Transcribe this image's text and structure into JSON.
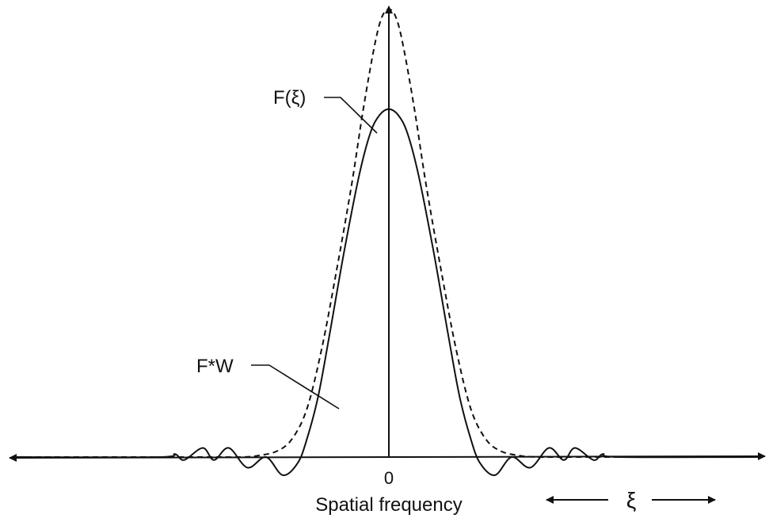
{
  "chart_data": {
    "type": "line",
    "title": "",
    "xlabel": "Spatial frequency",
    "ylabel": "",
    "origin_tick": "0",
    "axis_variable": "ξ",
    "x_range": [
      -1,
      1
    ],
    "y_range": [
      -0.08,
      1.5
    ],
    "grid": false,
    "legend": "none",
    "series": [
      {
        "name": "F(ξ)",
        "style": "dashed",
        "points": [
          [
            -1.0,
            0.0
          ],
          [
            -0.5,
            0.0
          ],
          [
            -0.4,
            0.0
          ],
          [
            -0.35,
            0.005
          ],
          [
            -0.3,
            0.02
          ],
          [
            -0.26,
            0.06
          ],
          [
            -0.22,
            0.16
          ],
          [
            -0.18,
            0.36
          ],
          [
            -0.14,
            0.62
          ],
          [
            -0.1,
            0.9
          ],
          [
            -0.07,
            1.14
          ],
          [
            -0.04,
            1.35
          ],
          [
            -0.02,
            1.45
          ],
          [
            0.0,
            1.48
          ],
          [
            0.02,
            1.45
          ],
          [
            0.04,
            1.35
          ],
          [
            0.07,
            1.14
          ],
          [
            0.1,
            0.9
          ],
          [
            0.14,
            0.62
          ],
          [
            0.18,
            0.36
          ],
          [
            0.22,
            0.16
          ],
          [
            0.26,
            0.06
          ],
          [
            0.3,
            0.02
          ],
          [
            0.35,
            0.005
          ],
          [
            0.4,
            0.0
          ],
          [
            0.5,
            0.0
          ],
          [
            1.0,
            0.0
          ]
        ]
      },
      {
        "name": "F*W",
        "style": "solid",
        "points": [
          [
            -1.0,
            0.0
          ],
          [
            -0.62,
            0.0
          ],
          [
            -0.575,
            0.01
          ],
          [
            -0.55,
            -0.01
          ],
          [
            -0.5,
            0.03
          ],
          [
            -0.47,
            -0.01
          ],
          [
            -0.43,
            0.03
          ],
          [
            -0.38,
            -0.035
          ],
          [
            -0.33,
            0.0
          ],
          [
            -0.285,
            -0.06
          ],
          [
            -0.245,
            -0.02
          ],
          [
            -0.22,
            0.06
          ],
          [
            -0.19,
            0.2
          ],
          [
            -0.16,
            0.4
          ],
          [
            -0.12,
            0.68
          ],
          [
            -0.08,
            0.93
          ],
          [
            -0.05,
            1.07
          ],
          [
            -0.025,
            1.13
          ],
          [
            0.0,
            1.15
          ],
          [
            0.025,
            1.13
          ],
          [
            0.05,
            1.07
          ],
          [
            0.08,
            0.93
          ],
          [
            0.12,
            0.68
          ],
          [
            0.16,
            0.4
          ],
          [
            0.19,
            0.2
          ],
          [
            0.22,
            0.06
          ],
          [
            0.245,
            -0.02
          ],
          [
            0.285,
            -0.06
          ],
          [
            0.33,
            0.0
          ],
          [
            0.38,
            -0.035
          ],
          [
            0.43,
            0.03
          ],
          [
            0.47,
            -0.01
          ],
          [
            0.5,
            0.03
          ],
          [
            0.55,
            -0.01
          ],
          [
            0.575,
            0.01
          ],
          [
            0.62,
            0.0
          ],
          [
            1.0,
            0.0
          ]
        ]
      }
    ],
    "annotations": [
      {
        "series": "F(ξ)",
        "text": "F(ξ)"
      },
      {
        "series": "F*W",
        "text": "F*W"
      }
    ]
  }
}
